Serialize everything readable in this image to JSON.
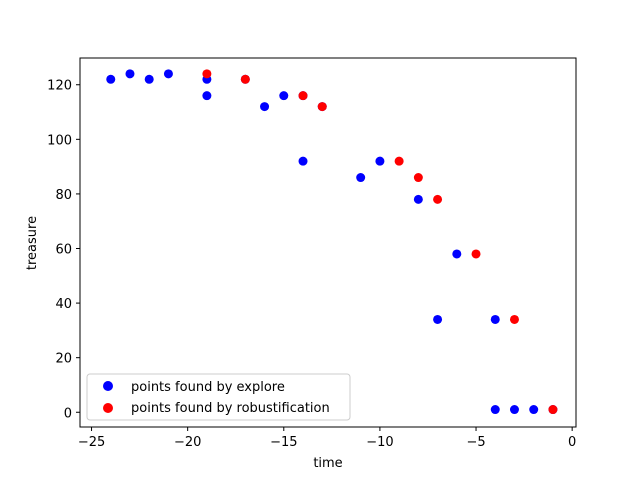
{
  "chart_data": {
    "type": "scatter",
    "xlabel": "time",
    "ylabel": "treasure",
    "xlim": [
      -25.6,
      0.2
    ],
    "ylim": [
      -5.4,
      129.8
    ],
    "xticks": [
      -25,
      -20,
      -15,
      -10,
      -5,
      0
    ],
    "yticks": [
      0,
      20,
      40,
      60,
      80,
      100,
      120
    ],
    "grid": false,
    "legend_position": "lower-left",
    "series": [
      {
        "name": "points found by explore",
        "color": "#0000ff",
        "points": [
          [
            -24,
            122
          ],
          [
            -23,
            124
          ],
          [
            -22,
            122
          ],
          [
            -21,
            124
          ],
          [
            -19,
            122
          ],
          [
            -19,
            116
          ],
          [
            -17,
            122
          ],
          [
            -16,
            112
          ],
          [
            -15,
            116
          ],
          [
            -14,
            116
          ],
          [
            -14,
            92
          ],
          [
            -13,
            112
          ],
          [
            -11,
            86
          ],
          [
            -10,
            92
          ],
          [
            -8,
            78
          ],
          [
            -6,
            58
          ],
          [
            -7,
            34
          ],
          [
            -4,
            34
          ],
          [
            -4,
            1
          ],
          [
            -3,
            1
          ],
          [
            -2,
            1
          ],
          [
            -1,
            1
          ]
        ]
      },
      {
        "name": "points found by robustification",
        "color": "#ff0000",
        "points": [
          [
            -19,
            124
          ],
          [
            -17,
            122
          ],
          [
            -14,
            116
          ],
          [
            -13,
            112
          ],
          [
            -9,
            92
          ],
          [
            -8,
            86
          ],
          [
            -7,
            78
          ],
          [
            -5,
            58
          ],
          [
            -3,
            34
          ],
          [
            -1,
            1
          ]
        ]
      }
    ]
  }
}
